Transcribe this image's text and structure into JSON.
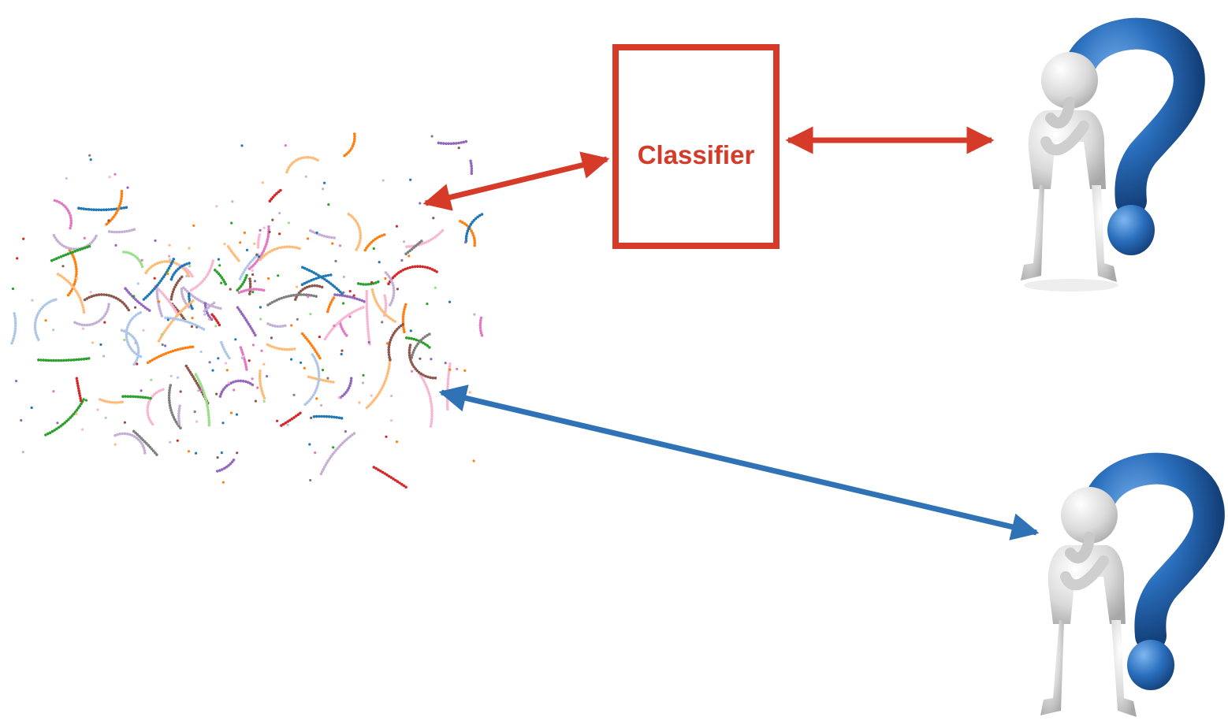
{
  "classifier": {
    "label": "Classifier"
  },
  "colors": {
    "red_arrow": "#d63a28",
    "blue_arrow": "#2f73b6",
    "question_blue": "#2a6fbd",
    "figure_gray": "#d9d9d9"
  },
  "scatter": {
    "palette": [
      "#1f77b4",
      "#ff7f0e",
      "#ffbb78",
      "#2ca02c",
      "#98df8a",
      "#d62728",
      "#9467bd",
      "#c5b0d5",
      "#8c564b",
      "#e377c2",
      "#f7b6d2",
      "#7f7f7f",
      "#aec7e8"
    ]
  },
  "icons": [
    "thinking-person-icon",
    "question-mark-icon"
  ]
}
